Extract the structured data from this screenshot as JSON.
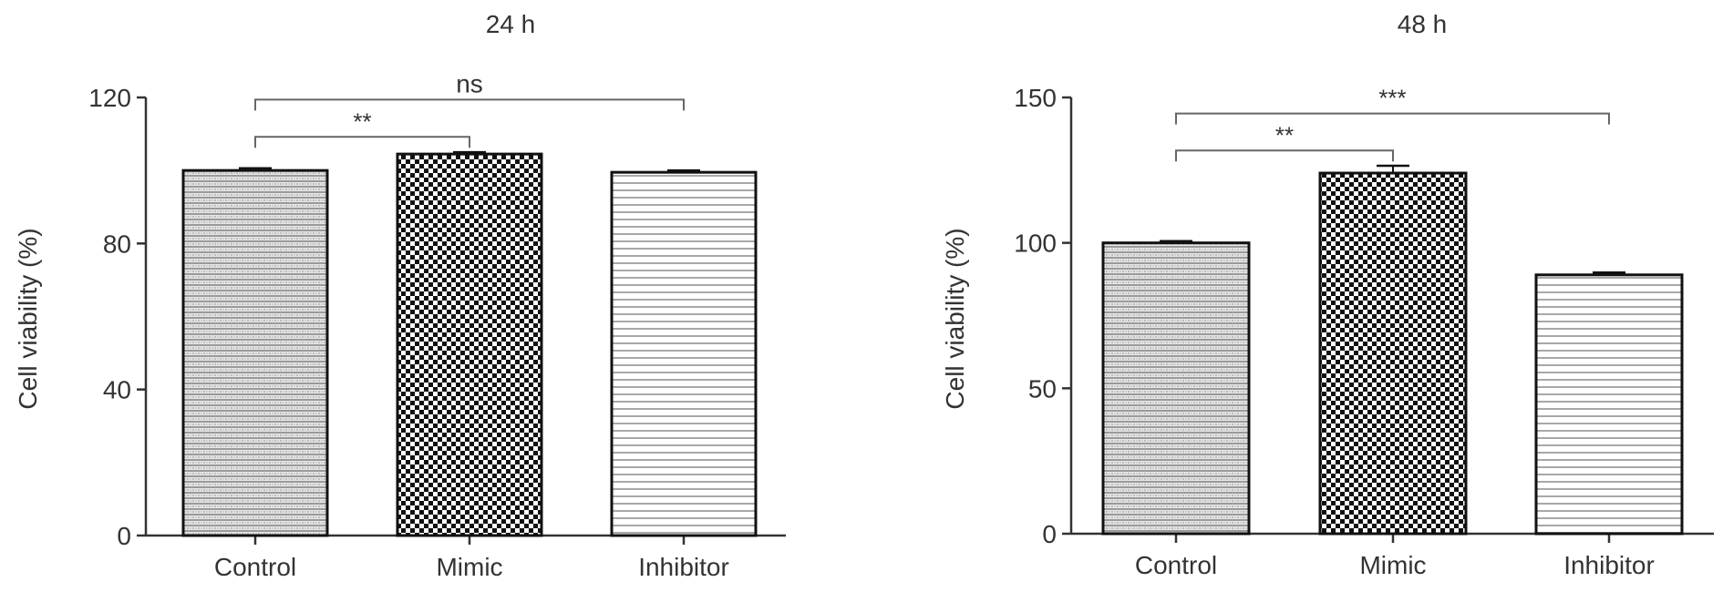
{
  "chart_data": [
    {
      "type": "bar",
      "title": "24 h",
      "xlabel": "",
      "ylabel": "Cell viability (%)",
      "categories": [
        "Control",
        "Mimic",
        "Inhibitor"
      ],
      "values": [
        100,
        104.5,
        99.5
      ],
      "errors": [
        0.6,
        0.5,
        0.5
      ],
      "ylim": [
        0,
        120
      ],
      "yticks": [
        0,
        40,
        80,
        120
      ],
      "bar_patterns": [
        "dotted-horizontal",
        "checkerboard",
        "horizontal-lines"
      ],
      "significance": [
        {
          "from": "Control",
          "to": "Mimic",
          "label": "**"
        },
        {
          "from": "Control",
          "to": "Inhibitor",
          "label": "ns"
        }
      ],
      "legend": "none",
      "grid": false
    },
    {
      "type": "bar",
      "title": "48 h",
      "xlabel": "",
      "ylabel": "Cell viability (%)",
      "categories": [
        "Control",
        "Mimic",
        "Inhibitor"
      ],
      "values": [
        100,
        124,
        89
      ],
      "errors": [
        0.6,
        2.5,
        0.8
      ],
      "ylim": [
        0,
        150
      ],
      "yticks": [
        0,
        50,
        100,
        150
      ],
      "bar_patterns": [
        "dotted-horizontal",
        "checkerboard",
        "horizontal-lines"
      ],
      "significance": [
        {
          "from": "Control",
          "to": "Mimic",
          "label": "**"
        },
        {
          "from": "Control",
          "to": "Inhibitor",
          "label": "***"
        }
      ],
      "legend": "none",
      "grid": false
    }
  ],
  "colors": {
    "axis": "#333333",
    "bar_edge": "#111111",
    "bracket": "#666666"
  }
}
